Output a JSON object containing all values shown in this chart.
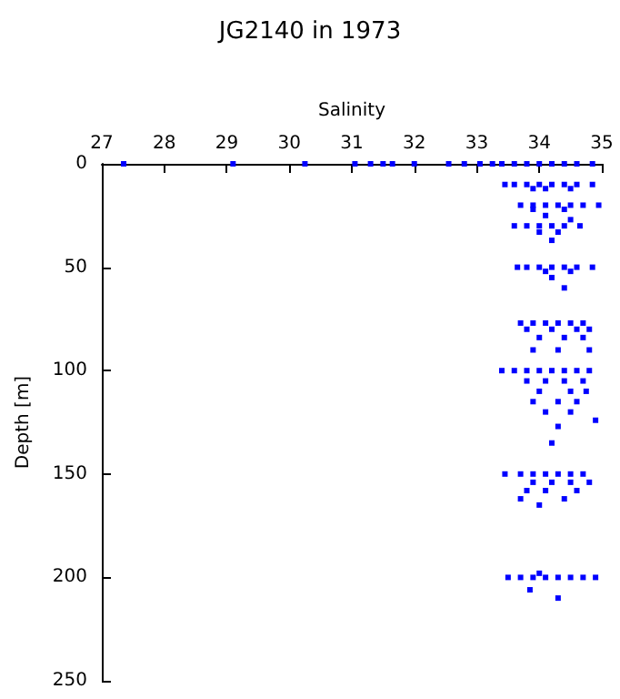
{
  "chart_data": {
    "type": "scatter",
    "title": "JG2140 in 1973",
    "xlabel": "Salinity",
    "ylabel": "Depth [m]",
    "xlim": [
      27,
      35
    ],
    "xticks": [
      27,
      28,
      29,
      30,
      31,
      32,
      33,
      34,
      35
    ],
    "ylim": [
      250,
      0
    ],
    "yticks": [
      0,
      50,
      100,
      150,
      200,
      250
    ],
    "grid": false,
    "marker": "square",
    "series": [
      {
        "color": "#0000ff",
        "x": [
          27.35,
          29.1,
          30.25,
          31.05,
          31.3,
          31.5,
          31.65,
          32.0,
          32.55,
          32.8,
          33.05,
          33.25,
          33.4,
          33.6,
          33.8,
          34.0,
          34.2,
          34.4,
          34.6,
          34.85,
          33.45,
          33.6,
          33.8,
          34.0,
          34.2,
          34.4,
          34.6,
          34.85,
          33.9,
          34.1,
          34.5,
          33.7,
          33.9,
          34.1,
          34.3,
          34.5,
          34.7,
          34.95,
          33.9,
          34.4,
          34.1,
          33.6,
          33.8,
          34.0,
          34.2,
          34.4,
          34.65,
          34.0,
          34.3,
          34.5,
          34.2,
          33.65,
          33.8,
          34.0,
          34.2,
          34.4,
          34.6,
          34.85,
          34.1,
          34.5,
          34.2,
          34.4,
          33.7,
          33.9,
          34.1,
          34.3,
          34.5,
          34.7,
          33.8,
          34.2,
          34.6,
          34.8,
          34.0,
          34.4,
          34.7,
          33.9,
          34.3,
          34.8,
          33.4,
          33.6,
          33.8,
          34.0,
          34.2,
          34.4,
          34.6,
          34.8,
          33.8,
          34.1,
          34.4,
          34.7,
          34.0,
          34.5,
          34.75,
          33.9,
          34.3,
          34.6,
          34.1,
          34.5,
          34.9,
          34.3,
          34.2,
          33.45,
          33.7,
          33.9,
          34.1,
          34.3,
          34.5,
          34.7,
          33.9,
          34.2,
          34.5,
          34.8,
          33.8,
          34.1,
          34.6,
          33.7,
          34.4,
          34.0,
          33.5,
          33.7,
          33.9,
          34.1,
          34.3,
          34.5,
          34.7,
          34.9,
          34.0,
          33.85,
          34.3
        ],
        "values": [
          0,
          0,
          0,
          0,
          0,
          0,
          0,
          0,
          0,
          0,
          0,
          0,
          0,
          0,
          0,
          0,
          0,
          0,
          0,
          0,
          10,
          10,
          10,
          10,
          10,
          10,
          10,
          10,
          12,
          12,
          12,
          20,
          20,
          20,
          20,
          20,
          20,
          20,
          22,
          22,
          25,
          30,
          30,
          30,
          30,
          30,
          30,
          33,
          33,
          27,
          37,
          50,
          50,
          50,
          50,
          50,
          50,
          50,
          52,
          52,
          55,
          60,
          77,
          77,
          77,
          77,
          77,
          77,
          80,
          80,
          80,
          80,
          84,
          84,
          84,
          90,
          90,
          90,
          100,
          100,
          100,
          100,
          100,
          100,
          100,
          100,
          105,
          105,
          105,
          105,
          110,
          110,
          110,
          115,
          115,
          115,
          120,
          120,
          124,
          127,
          135,
          150,
          150,
          150,
          150,
          150,
          150,
          150,
          154,
          154,
          154,
          154,
          158,
          158,
          158,
          162,
          162,
          165,
          200,
          200,
          200,
          200,
          200,
          200,
          200,
          200,
          198,
          206,
          210
        ]
      }
    ]
  }
}
